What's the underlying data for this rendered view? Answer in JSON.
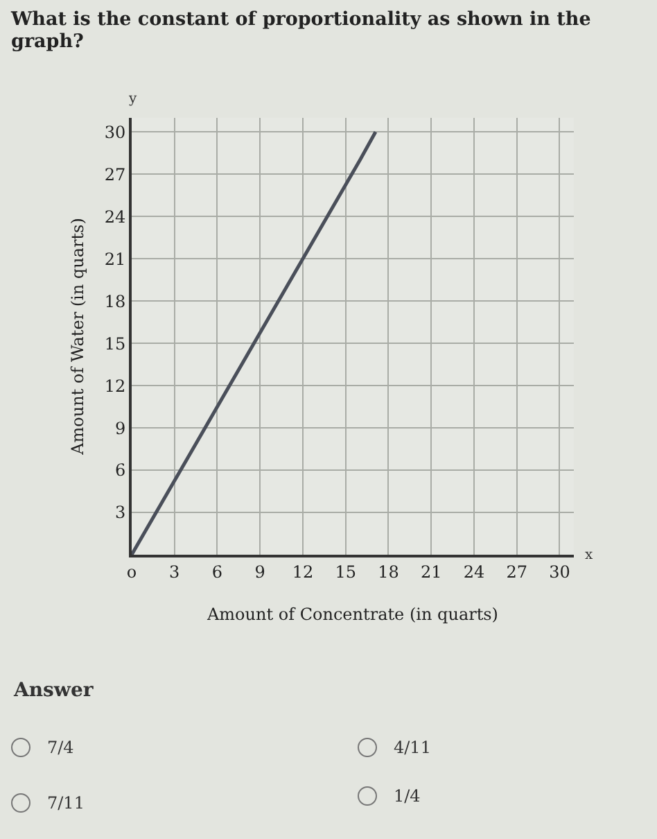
{
  "chart_data": {
    "type": "line",
    "title": "What is the constant of proportionality as shown in the graph?",
    "xlabel": "Amount of Concentrate (in quarts)",
    "ylabel": "Amount of Water (in quarts)",
    "x": [
      0,
      8,
      16,
      17.1
    ],
    "series": [
      {
        "color": "#4a4f5a",
        "values": [
          0,
          14,
          28,
          30
        ]
      }
    ],
    "xlim": [
      0,
      31
    ],
    "ylim": [
      0,
      31
    ],
    "xticks": [
      {
        "value": 0,
        "label": "o"
      },
      3,
      6,
      9,
      12,
      15,
      18,
      21,
      24,
      27,
      30
    ],
    "yticks": [
      3,
      6,
      9,
      12,
      15,
      18,
      21,
      24,
      27,
      30
    ],
    "grid": true,
    "marker": "none",
    "line_style": "solid",
    "annotations": [
      "x",
      "y",
      "Answer",
      "7/4",
      "4/11",
      "7/11",
      "1/4"
    ]
  }
}
